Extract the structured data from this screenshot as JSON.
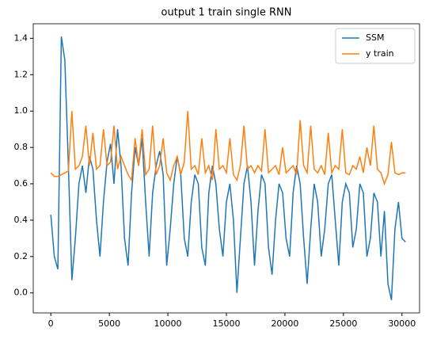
{
  "chart_data": {
    "type": "line",
    "title": "output 1 train single RNN",
    "x": [
      0,
      300,
      600,
      900,
      1200,
      1500,
      1800,
      2100,
      2400,
      2700,
      3000,
      3300,
      3600,
      3900,
      4200,
      4500,
      4800,
      5100,
      5400,
      5700,
      6000,
      6300,
      6600,
      6900,
      7200,
      7500,
      7800,
      8100,
      8400,
      8700,
      9000,
      9300,
      9600,
      9900,
      10200,
      10500,
      10800,
      11100,
      11400,
      11700,
      12000,
      12300,
      12600,
      12900,
      13200,
      13500,
      13800,
      14100,
      14400,
      14700,
      15000,
      15300,
      15600,
      15900,
      16200,
      16500,
      16800,
      17100,
      17400,
      17700,
      18000,
      18300,
      18600,
      18900,
      19200,
      19500,
      19800,
      20100,
      20400,
      20700,
      21000,
      21300,
      21600,
      21900,
      22200,
      22500,
      22800,
      23100,
      23400,
      23700,
      24000,
      24300,
      24600,
      24900,
      25200,
      25500,
      25800,
      26100,
      26400,
      26700,
      27000,
      27300,
      27600,
      27900,
      28200,
      28500,
      28800,
      29100,
      29400,
      29700,
      30000,
      30300
    ],
    "series": [
      {
        "name": "SSM",
        "color": "#1f77b4",
        "values": [
          0.43,
          0.2,
          0.13,
          1.41,
          1.28,
          0.7,
          0.07,
          0.3,
          0.6,
          0.7,
          0.55,
          0.75,
          0.68,
          0.4,
          0.2,
          0.5,
          0.72,
          0.82,
          0.6,
          0.9,
          0.7,
          0.3,
          0.15,
          0.55,
          0.8,
          0.7,
          0.85,
          0.5,
          0.2,
          0.55,
          0.7,
          0.78,
          0.65,
          0.15,
          0.35,
          0.6,
          0.75,
          0.65,
          0.3,
          0.2,
          0.5,
          0.65,
          0.6,
          0.25,
          0.15,
          0.55,
          0.7,
          0.6,
          0.35,
          0.2,
          0.5,
          0.6,
          0.4,
          0.0,
          0.3,
          0.6,
          0.7,
          0.5,
          0.15,
          0.45,
          0.65,
          0.6,
          0.25,
          0.1,
          0.4,
          0.6,
          0.55,
          0.3,
          0.2,
          0.55,
          0.7,
          0.6,
          0.3,
          0.05,
          0.35,
          0.6,
          0.5,
          0.2,
          0.35,
          0.6,
          0.65,
          0.4,
          0.15,
          0.5,
          0.6,
          0.55,
          0.25,
          0.35,
          0.6,
          0.55,
          0.2,
          0.3,
          0.55,
          0.5,
          0.2,
          0.45,
          0.05,
          -0.04,
          0.35,
          0.5,
          0.3,
          0.28
        ]
      },
      {
        "name": "y train",
        "color": "#ff7f0e",
        "values": [
          0.66,
          0.64,
          0.64,
          0.65,
          0.66,
          0.67,
          1.0,
          0.68,
          0.7,
          0.75,
          0.92,
          0.7,
          0.88,
          0.68,
          0.7,
          0.9,
          0.7,
          0.72,
          0.92,
          0.68,
          0.75,
          0.7,
          0.65,
          0.62,
          0.85,
          0.7,
          0.9,
          0.65,
          0.68,
          0.92,
          0.65,
          0.7,
          0.85,
          0.66,
          0.62,
          0.7,
          0.75,
          0.65,
          0.72,
          1.0,
          0.68,
          0.7,
          0.65,
          0.85,
          0.66,
          0.7,
          0.62,
          0.9,
          0.68,
          0.7,
          0.66,
          0.85,
          0.65,
          0.62,
          0.7,
          0.92,
          0.68,
          0.7,
          0.66,
          0.7,
          0.67,
          0.9,
          0.66,
          0.68,
          0.7,
          0.65,
          0.8,
          0.66,
          0.68,
          0.7,
          0.65,
          0.95,
          0.7,
          0.66,
          0.92,
          0.68,
          0.66,
          0.7,
          0.65,
          0.88,
          0.66,
          0.7,
          0.68,
          0.9,
          0.66,
          0.65,
          0.7,
          0.68,
          0.75,
          0.66,
          0.8,
          0.7,
          0.92,
          0.68,
          0.66,
          0.6,
          0.65,
          0.83,
          0.66,
          0.65,
          0.66,
          0.66
        ]
      }
    ],
    "xlim": [
      -1500,
      31500
    ],
    "xticks": [
      0,
      5000,
      10000,
      15000,
      20000,
      25000,
      30000
    ],
    "ylim": [
      -0.11,
      1.48
    ],
    "yticks": [
      {
        "value": 0,
        "label": "0.0"
      },
      0.2,
      0.4,
      0.6,
      0.8,
      {
        "value": 1,
        "label": "1.0"
      },
      1.2,
      1.4
    ],
    "legend": "upper right"
  }
}
